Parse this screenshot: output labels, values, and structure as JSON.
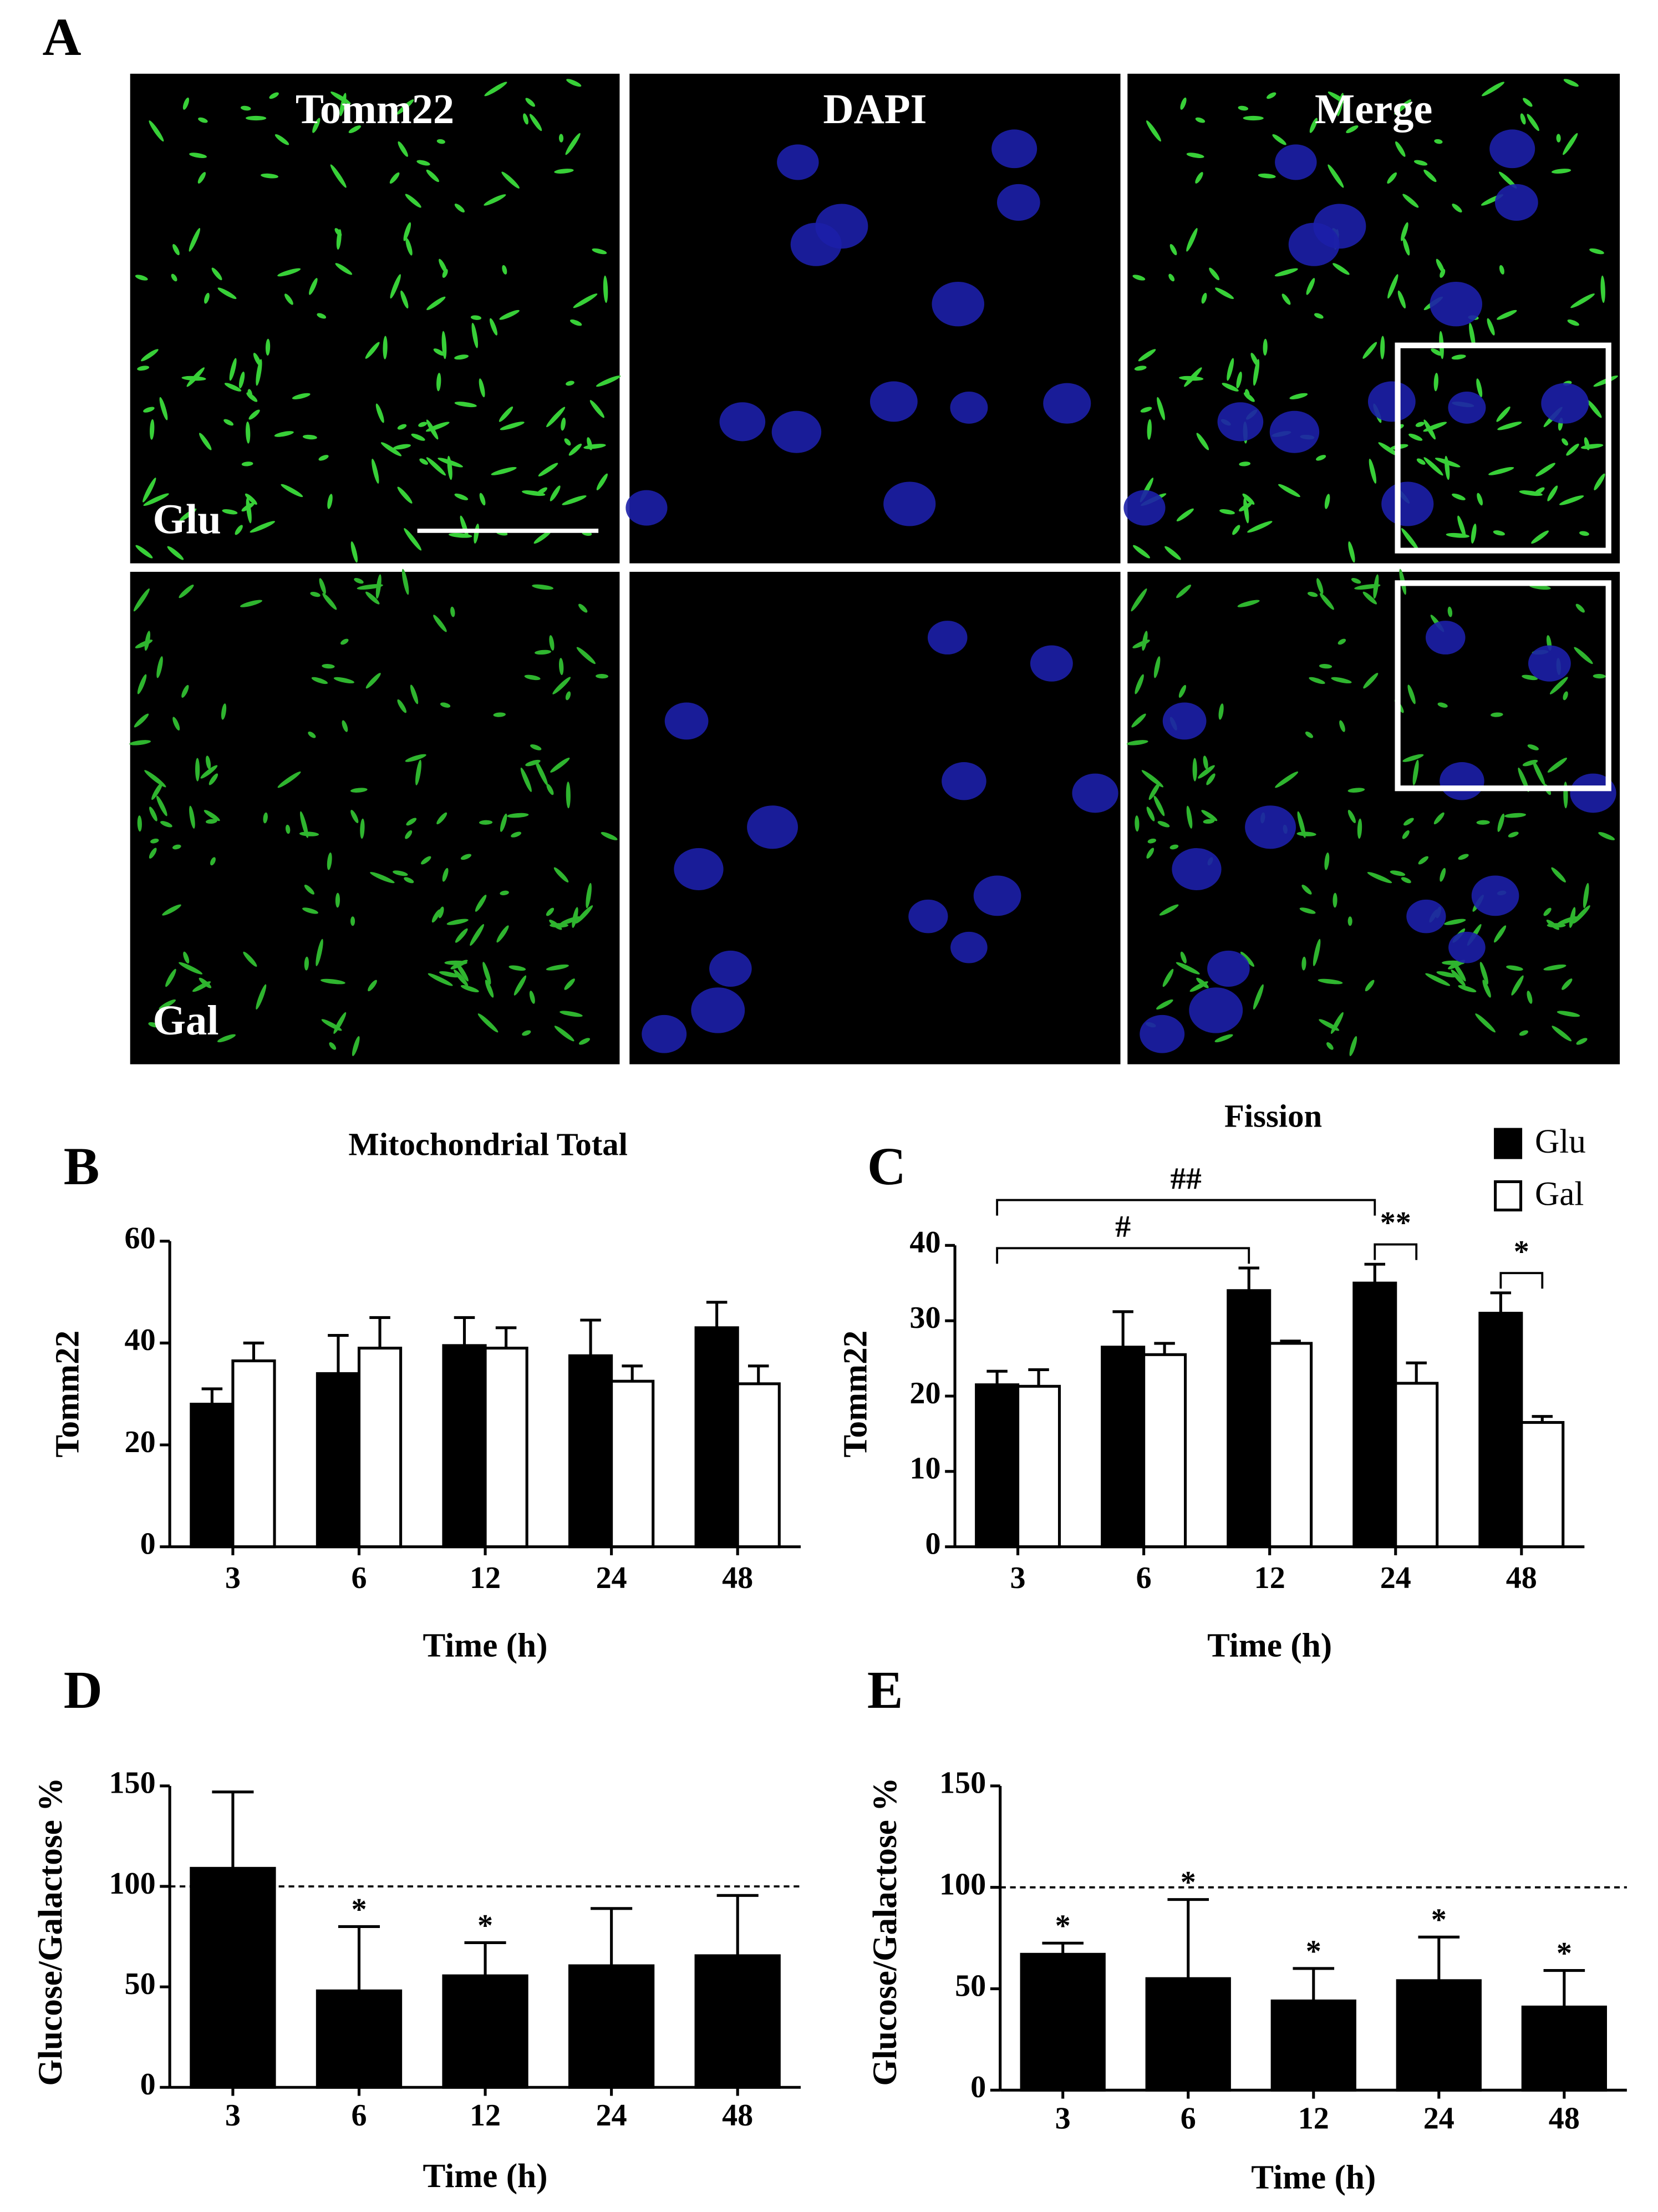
{
  "panel_a": {
    "label": "A",
    "columns": [
      "Tomm22",
      "DAPI",
      "Merge"
    ],
    "rows": [
      "Glu",
      "Gal"
    ]
  },
  "chart_data": [
    {
      "type": "bar",
      "panel_label": "B",
      "title": "Mitochondrial Total",
      "y_label": "Tomm22",
      "x_label": "Time (h)",
      "categories": [
        "3",
        "6",
        "12",
        "24",
        "48"
      ],
      "series": [
        {
          "color": "#000000",
          "values": [
            28,
            34,
            39.5,
            37.5,
            43
          ],
          "errors": [
            3,
            7.5,
            5.5,
            7,
            5
          ]
        },
        {
          "color": "#ffffff",
          "values": [
            36.5,
            39,
            39,
            32.5,
            32
          ],
          "errors": [
            3.5,
            6,
            4,
            3,
            3.5
          ]
        }
      ],
      "ylim": [
        0,
        60
      ],
      "yticks": [
        0,
        20,
        40,
        60
      ]
    },
    {
      "type": "bar",
      "panel_label": "C",
      "title": "Fission",
      "y_label": "Tomm22",
      "x_label": "Time (h)",
      "categories": [
        "3",
        "6",
        "12",
        "24",
        "48"
      ],
      "series": [
        {
          "name": "Glu",
          "color": "#000000",
          "values": [
            21.5,
            26.5,
            34,
            35,
            31
          ],
          "errors": [
            1.8,
            4.7,
            3,
            2.5,
            2.7
          ]
        },
        {
          "name": "Gal",
          "color": "#ffffff",
          "values": [
            21.3,
            25.5,
            27,
            21.7,
            16.5
          ],
          "errors": [
            2.2,
            1.5,
            0.3,
            2.7,
            0.8
          ]
        }
      ],
      "legend": "top-right",
      "annotations": [
        {
          "text": "#",
          "from": [
            0,
            0
          ],
          "to": [
            2,
            0
          ]
        },
        {
          "text": "##",
          "from": [
            0,
            0
          ],
          "to": [
            3,
            0
          ]
        },
        {
          "text": "**",
          "from": [
            3,
            0
          ],
          "to": [
            3,
            1
          ]
        },
        {
          "text": "*",
          "from": [
            4,
            0
          ],
          "to": [
            4,
            1
          ]
        }
      ],
      "ylim": [
        0,
        40
      ],
      "yticks": [
        0,
        10,
        20,
        30,
        40
      ]
    },
    {
      "type": "bar",
      "panel_label": "D",
      "y_label": "Glucose/Galactose %",
      "x_label": "Time (h)",
      "categories": [
        "3",
        "6",
        "12",
        "24",
        "48"
      ],
      "color": "#000000",
      "values": [
        109,
        48,
        55.5,
        60.5,
        65.5
      ],
      "errors": [
        38,
        32,
        16.5,
        28.5,
        30
      ],
      "significance": [
        null,
        "*",
        "*",
        null,
        null
      ],
      "reference_line": 100,
      "ylim": [
        0,
        150
      ],
      "yticks": [
        0,
        50,
        100,
        150
      ]
    },
    {
      "type": "bar",
      "panel_label": "E",
      "y_label": "Glucose/Galactose %",
      "x_label": "Time (h)",
      "categories": [
        "3",
        "6",
        "12",
        "24",
        "48"
      ],
      "color": "#000000",
      "values": [
        67,
        55,
        44,
        54,
        41
      ],
      "errors": [
        5.5,
        39,
        16,
        21.5,
        18
      ],
      "significance": [
        "*",
        "*",
        "*",
        "*",
        "*"
      ],
      "reference_line": 100,
      "ylim": [
        0,
        150
      ],
      "yticks": [
        0,
        50,
        100,
        150
      ]
    }
  ]
}
